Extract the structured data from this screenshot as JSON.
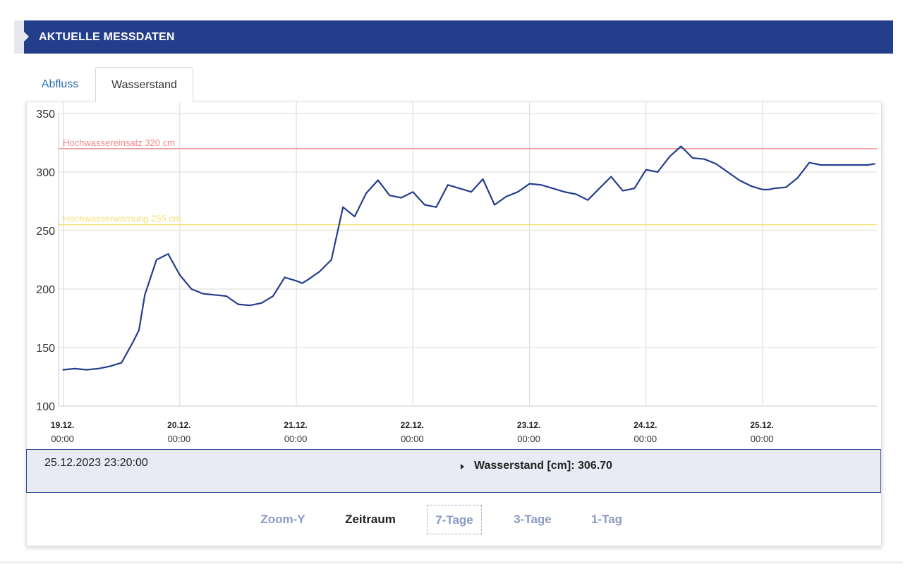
{
  "header": {
    "title": "AKTUELLE MESSDATEN"
  },
  "tabs": [
    {
      "label": "Abfluss",
      "active": false
    },
    {
      "label": "Wasserstand",
      "active": true
    }
  ],
  "colors": {
    "header_bg": "#233e8b",
    "series": "#233e8b",
    "flood_operation_line": "#f08a8a",
    "flood_warning_line": "#f5e27a",
    "grid": "#d9d9d9",
    "link": "#8c9ac2"
  },
  "readout": {
    "timestamp": "25.12.2023 23:20:00",
    "value_label": "Wasserstand [cm]: 306.70",
    "arrow_icon": "caret-right-icon"
  },
  "controls": {
    "zoom_y": "Zoom-Y",
    "zeitraum": "Zeitraum",
    "seven_days": "7-Tage",
    "three_days": "3-Tage",
    "one_day": "1-Tag"
  },
  "chart_data": {
    "type": "line",
    "ylim": [
      100,
      350
    ],
    "yticks": [
      100,
      150,
      200,
      250,
      300,
      350
    ],
    "x_tick_labels": [
      {
        "date": "19.12.",
        "time": "00:00",
        "day": 0
      },
      {
        "date": "20.12.",
        "time": "00:00",
        "day": 1
      },
      {
        "date": "21.12.",
        "time": "00:00",
        "day": 2
      },
      {
        "date": "22.12.",
        "time": "00:00",
        "day": 3
      },
      {
        "date": "23.12.",
        "time": "00:00",
        "day": 4
      },
      {
        "date": "24.12.",
        "time": "00:00",
        "day": 5
      },
      {
        "date": "25.12.",
        "time": "00:00",
        "day": 6
      }
    ],
    "xlim_days": [
      -0.04,
      6.98
    ],
    "thresholds": [
      {
        "label": "Hochwassereinsatz 320 cm",
        "value": 320,
        "color": "#f08a8a"
      },
      {
        "label": "Hochwasserwarnung 255 cm",
        "value": 255,
        "color": "#f5e27a"
      }
    ],
    "series": [
      {
        "name": "Wasserstand",
        "x": [
          0.0,
          0.1,
          0.2,
          0.3,
          0.4,
          0.5,
          0.6,
          0.65,
          0.7,
          0.8,
          0.9,
          1.0,
          1.1,
          1.2,
          1.3,
          1.4,
          1.5,
          1.6,
          1.7,
          1.8,
          1.9,
          2.0,
          2.05,
          2.1,
          2.2,
          2.3,
          2.4,
          2.5,
          2.6,
          2.7,
          2.8,
          2.9,
          3.0,
          3.1,
          3.2,
          3.3,
          3.4,
          3.5,
          3.6,
          3.7,
          3.8,
          3.9,
          4.0,
          4.1,
          4.2,
          4.3,
          4.4,
          4.5,
          4.6,
          4.7,
          4.8,
          4.9,
          5.0,
          5.1,
          5.2,
          5.3,
          5.4,
          5.5,
          5.6,
          5.7,
          5.8,
          5.9,
          6.0,
          6.05,
          6.1,
          6.2,
          6.3,
          6.4,
          6.5,
          6.6,
          6.7,
          6.8,
          6.9,
          6.96
        ],
        "values": [
          131,
          132,
          131,
          132,
          134,
          137,
          155,
          165,
          195,
          225,
          230,
          212,
          200,
          196,
          195,
          194,
          187,
          186,
          188,
          194,
          210,
          207,
          205,
          208,
          215,
          225,
          270,
          262,
          282,
          293,
          280,
          278,
          283,
          272,
          270,
          289,
          286,
          283,
          294,
          272,
          279,
          283,
          290,
          289,
          286,
          283,
          281,
          276,
          286,
          296,
          284,
          286,
          302,
          300,
          313,
          322,
          312,
          311,
          307,
          300,
          293,
          288,
          285,
          285,
          286,
          287,
          295,
          308,
          306,
          306,
          306,
          306,
          306,
          307
        ]
      }
    ]
  }
}
